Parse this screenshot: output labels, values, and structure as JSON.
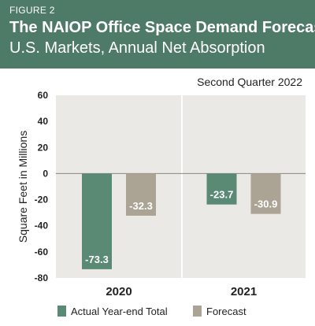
{
  "header": {
    "figure_label": "FIGURE 2",
    "title": "The NAIOP Office Space Demand Forecast",
    "subtitle": "U.S. Markets, Annual Net Absorption",
    "quarter_note": "Second Quarter 2022"
  },
  "colors": {
    "header_bg": "#4e7a68",
    "actual": "#5a8a74",
    "forecast": "#aba495",
    "plot_bg": "#ebe9e5"
  },
  "chart_data": {
    "type": "bar",
    "categories": [
      "2020",
      "2021"
    ],
    "series": [
      {
        "name": "Actual Year-end Total",
        "values": [
          -73.3,
          -23.7
        ],
        "labels": [
          "-73.3",
          "-23.7"
        ]
      },
      {
        "name": "Forecast",
        "values": [
          -32.3,
          -30.9
        ],
        "labels": [
          "-32.3",
          "-30.9"
        ]
      }
    ],
    "ylabel": "Square Feet in Millions",
    "ylim": [
      -80,
      60
    ],
    "yticks": [
      60,
      40,
      20,
      0,
      -20,
      -40,
      -60,
      -80
    ],
    "ytick_labels": [
      "60",
      "40",
      "20",
      "0",
      "-20",
      "-40",
      "-60",
      "-80"
    ],
    "grid": false,
    "legend_position": "bottom"
  }
}
